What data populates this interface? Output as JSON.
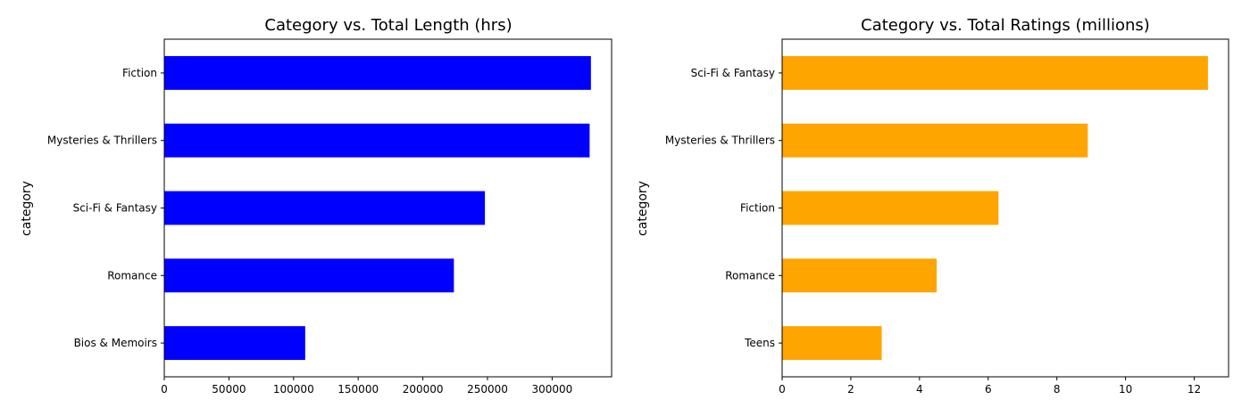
{
  "chart_data": [
    {
      "type": "bar",
      "orientation": "horizontal",
      "title": "Category vs. Total Length (hrs)",
      "xlabel": "",
      "ylabel": "category",
      "categories": [
        "Fiction",
        "Mysteries & Thrillers",
        "Sci-Fi & Fantasy",
        "Romance",
        "Bios & Memoirs"
      ],
      "values": [
        330000,
        329000,
        248000,
        224000,
        109000
      ],
      "xlim": [
        0,
        346000
      ],
      "xticks": [
        0,
        50000,
        100000,
        150000,
        200000,
        250000,
        300000
      ],
      "xtick_labels": [
        "0",
        "50000",
        "100000",
        "150000",
        "200000",
        "250000",
        "300000"
      ],
      "color": "#0000ff",
      "grid": false
    },
    {
      "type": "bar",
      "orientation": "horizontal",
      "title": "Category vs. Total Ratings (millions)",
      "xlabel": "",
      "ylabel": "category",
      "categories": [
        "Sci-Fi & Fantasy",
        "Mysteries & Thrillers",
        "Fiction",
        "Romance",
        "Teens"
      ],
      "values": [
        12.4,
        8.9,
        6.3,
        4.5,
        2.9
      ],
      "xlim": [
        0,
        13.0
      ],
      "xticks": [
        0,
        2,
        4,
        6,
        8,
        10,
        12
      ],
      "xtick_labels": [
        "0",
        "2",
        "4",
        "6",
        "8",
        "10",
        "12"
      ],
      "color": "#ffa500",
      "grid": false
    }
  ]
}
